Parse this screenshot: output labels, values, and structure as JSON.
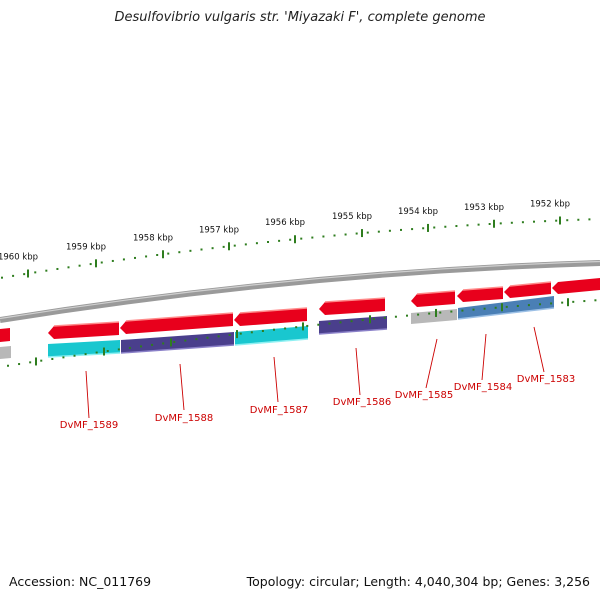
{
  "title": "Desulfovibrio vulgaris str. 'Miyazaki F', complete genome",
  "footer": {
    "accession": "Accession: NC_011769",
    "topology": "Topology: circular; Length: 4,040,304 bp; Genes: 3,256"
  },
  "colors": {
    "backbone": "#8a8a8a",
    "tick": "#2e7d1e",
    "label": "#cc0000",
    "forward_gene": "#e8001c",
    "cyan_feature": "#19c7cf",
    "purple_feature": "#4a3f8c",
    "blue_feature": "#4a7fb5",
    "grey_feature": "#b8b8b8"
  },
  "scale": {
    "unit": "kbp",
    "labels": [
      "1960 kbp",
      "1959 kbp",
      "1958 kbp",
      "1957 kbp",
      "1956 kbp",
      "1955 kbp",
      "1954 kbp",
      "1953 kbp",
      "1952 kbp"
    ]
  },
  "genes": [
    {
      "label": "DvMF_1589"
    },
    {
      "label": "DvMF_1588"
    },
    {
      "label": "DvMF_1587"
    },
    {
      "label": "DvMF_1586"
    },
    {
      "label": "DvMF_1585"
    },
    {
      "label": "DvMF_1584"
    },
    {
      "label": "DvMF_1583"
    }
  ]
}
